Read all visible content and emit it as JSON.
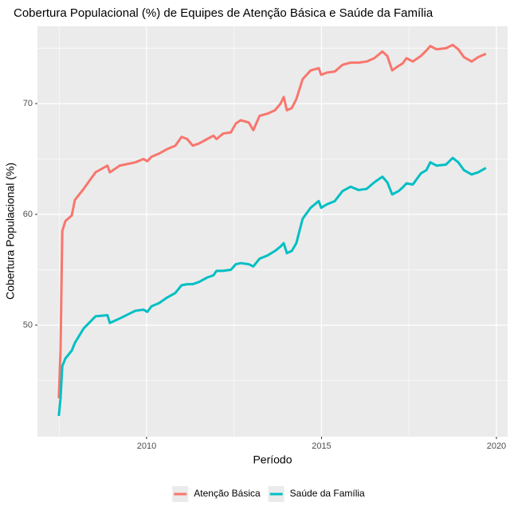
{
  "chart_data": {
    "type": "line",
    "title": "Cobertura Populacional (%) de Equipes de Atenção Básica e Saúde da Família",
    "x_label": "Período",
    "y_label": "Cobertura Populacional (%)",
    "x": [
      2007.49,
      2007.54,
      2007.59,
      2007.68,
      2007.86,
      2007.95,
      2008.2,
      2008.54,
      2008.88,
      2008.95,
      2009.23,
      2009.68,
      2009.91,
      2010.02,
      2010.14,
      2010.36,
      2010.59,
      2010.82,
      2011.0,
      2011.16,
      2011.32,
      2011.5,
      2011.73,
      2011.91,
      2012.0,
      2012.19,
      2012.41,
      2012.55,
      2012.69,
      2012.92,
      2013.05,
      2013.23,
      2013.46,
      2013.67,
      2013.83,
      2013.92,
      2014.01,
      2014.15,
      2014.28,
      2014.46,
      2014.69,
      2014.92,
      2014.99,
      2015.15,
      2015.38,
      2015.6,
      2015.83,
      2016.06,
      2016.29,
      2016.51,
      2016.74,
      2016.88,
      2017.02,
      2017.2,
      2017.31,
      2017.43,
      2017.61,
      2017.84,
      2018.0,
      2018.11,
      2018.29,
      2018.56,
      2018.75,
      2018.91,
      2019.07,
      2019.29,
      2019.48,
      2019.7
    ],
    "series": [
      {
        "name": "Atenção Básica",
        "color": "#F8766D",
        "values": [
          43.4,
          47.7,
          58.5,
          59.4,
          59.9,
          61.3,
          62.3,
          63.8,
          64.4,
          63.8,
          64.4,
          64.7,
          65.0,
          64.8,
          65.2,
          65.5,
          65.9,
          66.2,
          67.0,
          66.8,
          66.2,
          66.4,
          66.8,
          67.1,
          66.8,
          67.3,
          67.4,
          68.2,
          68.5,
          68.3,
          67.6,
          68.9,
          69.1,
          69.4,
          70.0,
          70.6,
          69.4,
          69.6,
          70.4,
          72.2,
          73.0,
          73.2,
          72.6,
          72.8,
          72.9,
          73.5,
          73.7,
          73.7,
          73.8,
          74.1,
          74.7,
          74.3,
          73.0,
          73.4,
          73.6,
          74.1,
          73.8,
          74.3,
          74.8,
          75.2,
          74.9,
          75.0,
          75.3,
          74.9,
          74.2,
          73.8,
          74.2,
          74.5
        ]
      },
      {
        "name": "Saúde da Família",
        "color": "#00BFC4",
        "values": [
          41.8,
          43.4,
          46.3,
          47.0,
          47.7,
          48.4,
          49.7,
          50.8,
          50.9,
          50.2,
          50.6,
          51.3,
          51.4,
          51.2,
          51.7,
          52.0,
          52.5,
          52.9,
          53.6,
          53.7,
          53.7,
          53.9,
          54.3,
          54.5,
          54.9,
          54.9,
          55.0,
          55.5,
          55.6,
          55.5,
          55.3,
          56.0,
          56.3,
          56.7,
          57.1,
          57.4,
          56.5,
          56.7,
          57.4,
          59.6,
          60.6,
          61.2,
          60.6,
          60.9,
          61.2,
          62.1,
          62.5,
          62.2,
          62.3,
          62.9,
          63.4,
          62.9,
          61.8,
          62.1,
          62.4,
          62.8,
          62.7,
          63.7,
          64.0,
          64.7,
          64.4,
          64.5,
          65.1,
          64.7,
          64.0,
          63.6,
          63.8,
          64.2
        ]
      }
    ],
    "xlim": [
      2006.88,
      2020.32
    ],
    "ylim": [
      39.93,
      76.98
    ],
    "xticks": [
      2010,
      2015,
      2020
    ],
    "yticks": [
      50,
      60,
      70
    ],
    "grid": true,
    "legend": "bottom"
  }
}
